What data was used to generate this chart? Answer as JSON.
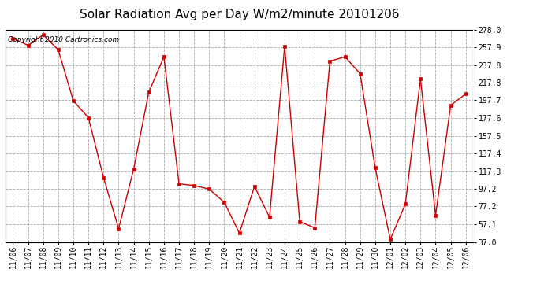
{
  "title": "Solar Radiation Avg per Day W/m2/minute 20101206",
  "copyright": "Copyright 2010 Cartronics.com",
  "dates": [
    "11/06",
    "11/07",
    "11/08",
    "11/09",
    "11/10",
    "11/11",
    "11/12",
    "11/13",
    "11/14",
    "11/15",
    "11/16",
    "11/17",
    "11/18",
    "11/19",
    "11/20",
    "11/21",
    "11/22",
    "11/23",
    "11/24",
    "11/25",
    "11/26",
    "11/27",
    "11/28",
    "11/29",
    "11/30",
    "12/01",
    "12/02",
    "12/03",
    "12/04",
    "12/05",
    "12/06"
  ],
  "values": [
    268.0,
    260.0,
    272.0,
    255.0,
    197.0,
    178.0,
    110.0,
    52.0,
    120.0,
    207.0,
    247.0,
    103.0,
    101.0,
    97.0,
    82.0,
    47.0,
    100.0,
    65.0,
    259.0,
    60.0,
    53.0,
    242.0,
    247.0,
    228.0,
    121.0,
    40.0,
    80.0,
    222.0,
    67.0,
    192.0,
    205.0
  ],
  "line_color": "#cc0000",
  "marker": "s",
  "marker_size": 2.5,
  "bg_color": "#ffffff",
  "plot_bg_color": "#ffffff",
  "grid_color": "#aaaaaa",
  "grid_style": "--",
  "ylim": [
    37.0,
    278.0
  ],
  "yticks": [
    37.0,
    57.1,
    77.2,
    97.2,
    117.3,
    137.4,
    157.5,
    177.6,
    197.7,
    217.8,
    237.8,
    257.9,
    278.0
  ],
  "title_fontsize": 11,
  "copyright_fontsize": 6.5,
  "tick_fontsize": 7
}
